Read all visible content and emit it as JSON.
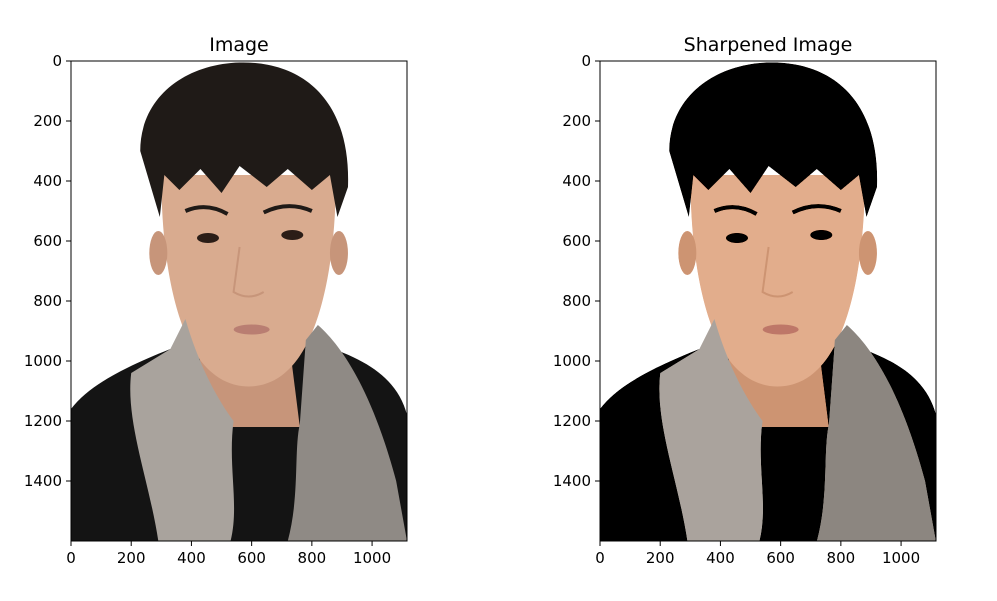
{
  "panels": [
    {
      "title": "Image",
      "x_ticks": [
        "0",
        "200",
        "400",
        "600",
        "800",
        "1000"
      ],
      "y_ticks": [
        "0",
        "200",
        "400",
        "600",
        "800",
        "1000",
        "1200",
        "1400"
      ],
      "x_max": 1116,
      "y_max": 1600,
      "sharpened": false
    },
    {
      "title": "Sharpened Image",
      "x_ticks": [
        "0",
        "200",
        "400",
        "600",
        "800",
        "1000"
      ],
      "y_ticks": [
        "0",
        "200",
        "400",
        "600",
        "800",
        "1000",
        "1200",
        "1400"
      ],
      "x_max": 1116,
      "y_max": 1600,
      "sharpened": true
    }
  ],
  "colors": {
    "hair": "#1f1a17",
    "skin": "#d9ab8f",
    "skin_shadow": "#c7957a",
    "towel": "#8f8a85",
    "towel_light": "#a9a39d",
    "shirt": "#141414",
    "lip": "#b97e72",
    "eye": "#2b1d17"
  }
}
